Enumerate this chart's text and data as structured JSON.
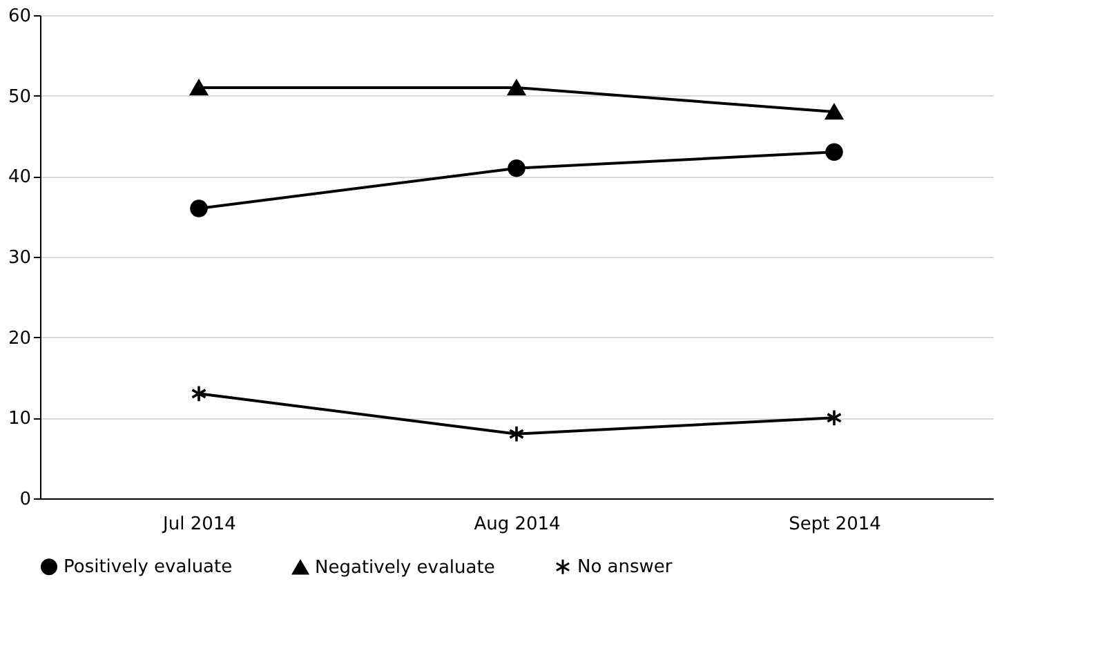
{
  "chart_data": {
    "type": "line",
    "categories": [
      "Jul 2014",
      "Aug 2014",
      "Sept 2014"
    ],
    "series": [
      {
        "name": "Positively evaluate",
        "color": "#000000",
        "marker": "circle",
        "values": [
          36,
          41,
          43
        ]
      },
      {
        "name": "Negatively evaluate",
        "color": "#000000",
        "marker": "triangle",
        "values": [
          51,
          51,
          48
        ]
      },
      {
        "name": "No answer",
        "color": "#000000",
        "marker": "cross",
        "values": [
          13,
          8,
          10
        ]
      }
    ],
    "ylim": [
      0,
      60
    ],
    "yticks": [
      0,
      10,
      20,
      30,
      40,
      50,
      60
    ],
    "grid": "y",
    "legend": "bottom",
    "line_style": "solid"
  }
}
